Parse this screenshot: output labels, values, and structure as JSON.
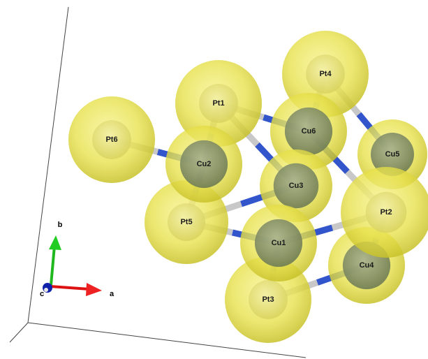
{
  "scene": {
    "background": "#ffffff",
    "atoms": [
      {
        "id": "Pt6",
        "label": "Pt6",
        "element": "Pt"
      },
      {
        "id": "Pt1",
        "label": "Pt1",
        "element": "Pt"
      },
      {
        "id": "Pt4",
        "label": "Pt4",
        "element": "Pt"
      },
      {
        "id": "Cu5",
        "label": "Cu5",
        "element": "Cu"
      },
      {
        "id": "Cu6",
        "label": "Cu6",
        "element": "Cu"
      },
      {
        "id": "Cu3",
        "label": "Cu3",
        "element": "Cu"
      },
      {
        "id": "Pt5",
        "label": "Pt5",
        "element": "Pt"
      },
      {
        "id": "Cu2",
        "label": "Cu2",
        "element": "Cu"
      },
      {
        "id": "Cu4",
        "label": "Cu4",
        "element": "Cu"
      },
      {
        "id": "Pt3",
        "label": "Pt3",
        "element": "Pt"
      },
      {
        "id": "Pt2",
        "label": "Pt2",
        "element": "Pt"
      },
      {
        "id": "Cu1",
        "label": "Cu1",
        "element": "Cu"
      }
    ],
    "bonds": [
      [
        "Pt6",
        "Cu2"
      ],
      [
        "Pt1",
        "Cu2"
      ],
      [
        "Pt1",
        "Cu6"
      ],
      [
        "Pt1",
        "Cu3"
      ],
      [
        "Pt4",
        "Cu6"
      ],
      [
        "Pt4",
        "Cu5"
      ],
      [
        "Cu6",
        "Pt2"
      ],
      [
        "Pt5",
        "Cu2"
      ],
      [
        "Pt5",
        "Cu3"
      ],
      [
        "Pt5",
        "Cu1"
      ],
      [
        "Cu1",
        "Pt2"
      ],
      [
        "Cu1",
        "Pt3"
      ],
      [
        "Pt3",
        "Cu4"
      ],
      [
        "Cu4",
        "Pt2"
      ]
    ],
    "colors": {
      "pt_shell": "#e6e04a",
      "cu_core": "#8c9a6e",
      "bond_pt": "#c8c8c8",
      "bond_cu": "#3355cc",
      "cell_line": "#444444",
      "axis_a": "#dd1111",
      "axis_b": "#11bb11",
      "axis_c": "#1122aa"
    },
    "axes": {
      "a": "a",
      "b": "b",
      "c": "c"
    }
  }
}
